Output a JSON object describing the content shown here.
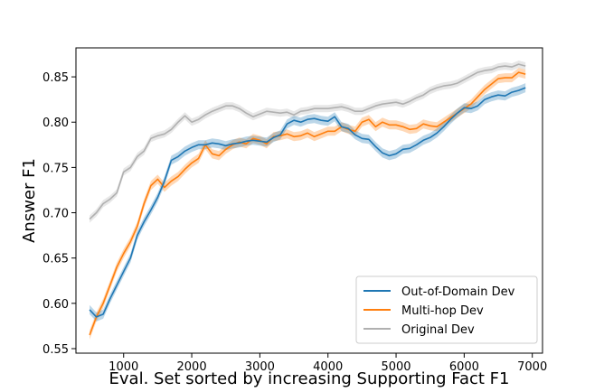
{
  "chart_data": {
    "type": "line",
    "xlabel": "Eval. Set sorted by increasing Supporting Fact F1",
    "ylabel": "Answer F1",
    "xlim": [
      300,
      7150
    ],
    "ylim": [
      0.545,
      0.882
    ],
    "xticks": [
      1000,
      2000,
      3000,
      4000,
      5000,
      6000,
      7000
    ],
    "yticks": [
      0.55,
      0.6,
      0.65,
      0.7,
      0.75,
      0.8,
      0.85
    ],
    "xtick_labels": [
      "1000",
      "2000",
      "3000",
      "4000",
      "5000",
      "6000",
      "7000"
    ],
    "ytick_labels": [
      "0.55",
      "0.60",
      "0.65",
      "0.70",
      "0.75",
      "0.80",
      "0.85"
    ],
    "grid": false,
    "legend_position": "lower-right",
    "series": [
      {
        "name": "Out-of-Domain Dev",
        "color": "#1f77b4",
        "band": 0.005,
        "x": [
          500,
          600,
          700,
          800,
          900,
          1000,
          1100,
          1200,
          1300,
          1400,
          1500,
          1600,
          1700,
          1800,
          1900,
          2000,
          2100,
          2200,
          2300,
          2400,
          2500,
          2600,
          2700,
          2800,
          2900,
          3000,
          3100,
          3200,
          3300,
          3400,
          3500,
          3600,
          3700,
          3800,
          3900,
          4000,
          4100,
          4200,
          4300,
          4400,
          4500,
          4600,
          4700,
          4800,
          4900,
          5000,
          5100,
          5200,
          5300,
          5400,
          5500,
          5600,
          5700,
          5800,
          5900,
          6000,
          6100,
          6200,
          6300,
          6400,
          6500,
          6600,
          6700,
          6800,
          6900
        ],
        "y": [
          0.593,
          0.585,
          0.588,
          0.605,
          0.62,
          0.635,
          0.65,
          0.675,
          0.69,
          0.703,
          0.717,
          0.735,
          0.758,
          0.762,
          0.768,
          0.772,
          0.775,
          0.775,
          0.777,
          0.776,
          0.774,
          0.776,
          0.777,
          0.779,
          0.78,
          0.779,
          0.778,
          0.783,
          0.786,
          0.798,
          0.802,
          0.8,
          0.803,
          0.804,
          0.802,
          0.801,
          0.806,
          0.795,
          0.793,
          0.786,
          0.782,
          0.781,
          0.773,
          0.766,
          0.763,
          0.765,
          0.77,
          0.771,
          0.775,
          0.78,
          0.783,
          0.788,
          0.795,
          0.803,
          0.81,
          0.816,
          0.815,
          0.818,
          0.825,
          0.828,
          0.83,
          0.829,
          0.833,
          0.835,
          0.838
        ]
      },
      {
        "name": "Multi-hop Dev",
        "color": "#ff7f0e",
        "band": 0.005,
        "x": [
          500,
          600,
          700,
          800,
          900,
          1000,
          1100,
          1200,
          1300,
          1400,
          1500,
          1600,
          1700,
          1800,
          1900,
          2000,
          2100,
          2200,
          2300,
          2400,
          2500,
          2600,
          2700,
          2800,
          2900,
          3000,
          3100,
          3200,
          3300,
          3400,
          3500,
          3600,
          3700,
          3800,
          3900,
          4000,
          4100,
          4200,
          4300,
          4400,
          4500,
          4600,
          4700,
          4800,
          4900,
          5000,
          5100,
          5200,
          5300,
          5400,
          5500,
          5600,
          5700,
          5800,
          5900,
          6000,
          6100,
          6200,
          6300,
          6400,
          6500,
          6600,
          6700,
          6800,
          6900
        ],
        "y": [
          0.565,
          0.585,
          0.6,
          0.62,
          0.64,
          0.655,
          0.668,
          0.685,
          0.71,
          0.73,
          0.737,
          0.728,
          0.735,
          0.74,
          0.748,
          0.755,
          0.76,
          0.775,
          0.765,
          0.763,
          0.77,
          0.775,
          0.778,
          0.776,
          0.782,
          0.78,
          0.776,
          0.784,
          0.785,
          0.787,
          0.784,
          0.785,
          0.788,
          0.784,
          0.787,
          0.79,
          0.79,
          0.795,
          0.792,
          0.79,
          0.8,
          0.803,
          0.795,
          0.8,
          0.797,
          0.797,
          0.795,
          0.792,
          0.793,
          0.798,
          0.796,
          0.795,
          0.8,
          0.805,
          0.81,
          0.815,
          0.82,
          0.828,
          0.836,
          0.842,
          0.848,
          0.849,
          0.849,
          0.855,
          0.853
        ]
      },
      {
        "name": "Original Dev",
        "color": "#b0b0b0",
        "band": 0.004,
        "x": [
          500,
          600,
          700,
          800,
          900,
          1000,
          1100,
          1200,
          1300,
          1400,
          1500,
          1600,
          1700,
          1800,
          1900,
          2000,
          2100,
          2200,
          2300,
          2400,
          2500,
          2600,
          2700,
          2800,
          2900,
          3000,
          3100,
          3200,
          3300,
          3400,
          3500,
          3600,
          3700,
          3800,
          3900,
          4000,
          4100,
          4200,
          4300,
          4400,
          4500,
          4600,
          4700,
          4800,
          4900,
          5000,
          5100,
          5200,
          5300,
          5400,
          5500,
          5600,
          5700,
          5800,
          5900,
          6000,
          6100,
          6200,
          6300,
          6400,
          6500,
          6600,
          6700,
          6800,
          6900
        ],
        "y": [
          0.693,
          0.7,
          0.71,
          0.715,
          0.722,
          0.745,
          0.75,
          0.762,
          0.768,
          0.782,
          0.785,
          0.787,
          0.792,
          0.8,
          0.807,
          0.8,
          0.803,
          0.808,
          0.812,
          0.815,
          0.818,
          0.818,
          0.815,
          0.81,
          0.806,
          0.809,
          0.812,
          0.811,
          0.81,
          0.811,
          0.808,
          0.812,
          0.813,
          0.815,
          0.815,
          0.815,
          0.816,
          0.817,
          0.815,
          0.812,
          0.812,
          0.815,
          0.818,
          0.82,
          0.821,
          0.822,
          0.82,
          0.823,
          0.827,
          0.83,
          0.835,
          0.838,
          0.84,
          0.841,
          0.843,
          0.847,
          0.851,
          0.855,
          0.857,
          0.858,
          0.861,
          0.862,
          0.861,
          0.864,
          0.862
        ]
      }
    ]
  }
}
